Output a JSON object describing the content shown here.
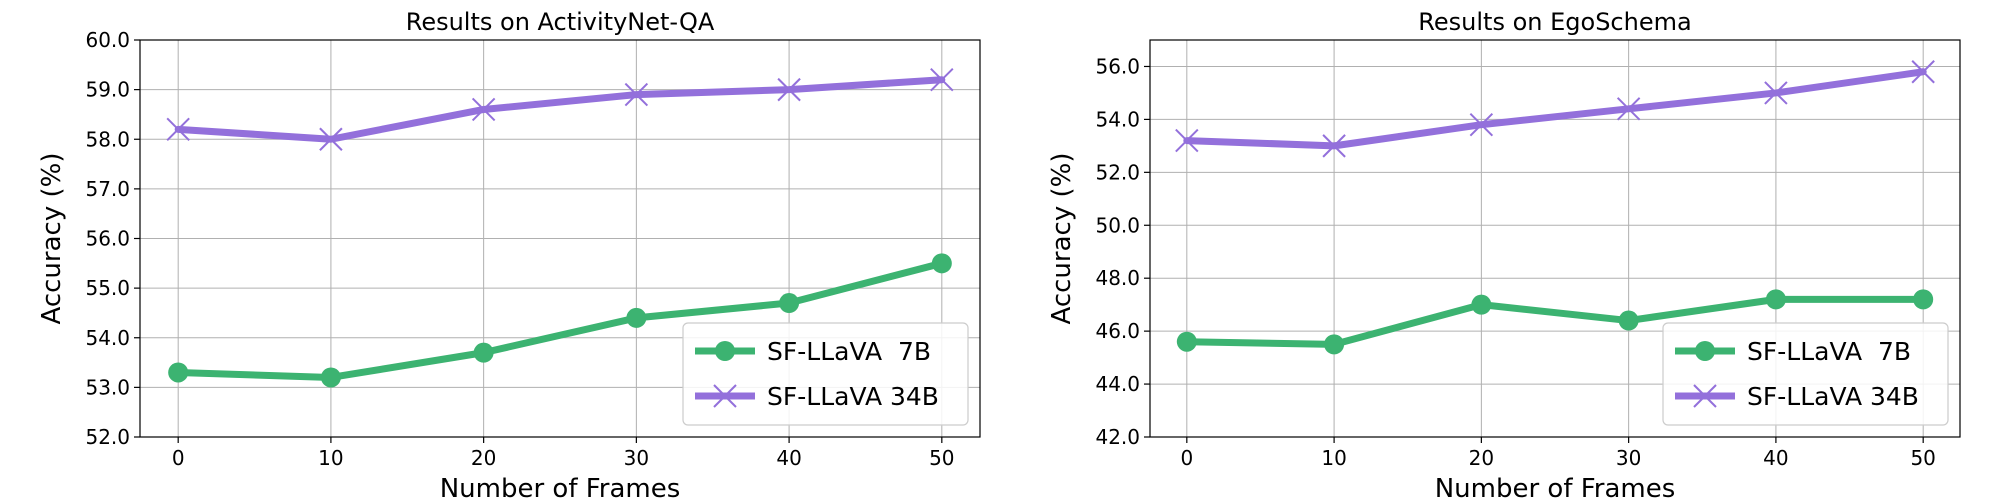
{
  "chart_data": [
    {
      "type": "line",
      "title": "Results on ActivityNet-QA",
      "xlabel": "Number of Frames",
      "ylabel": "Accuracy (%)",
      "x": [
        0,
        10,
        20,
        30,
        40,
        50
      ],
      "xlim": [
        -2.5,
        52.5
      ],
      "ylim": [
        52.0,
        60.0
      ],
      "xticks": [
        0,
        10,
        20,
        30,
        40,
        50
      ],
      "yticks": [
        52.0,
        53.0,
        54.0,
        55.0,
        56.0,
        57.0,
        58.0,
        59.0,
        60.0
      ],
      "grid": true,
      "legend_position": "lower-right",
      "series": [
        {
          "name": "SF-LLaVA  7B",
          "marker": "circle",
          "color": "#3cb371",
          "values": [
            53.3,
            53.2,
            53.7,
            54.4,
            54.7,
            55.5
          ]
        },
        {
          "name": "SF-LLaVA 34B",
          "marker": "x",
          "color": "#9370db",
          "values": [
            58.2,
            58.0,
            58.6,
            58.9,
            59.0,
            59.2
          ]
        }
      ]
    },
    {
      "type": "line",
      "title": "Results on EgoSchema",
      "xlabel": "Number of Frames",
      "ylabel": "Accuracy (%)",
      "x": [
        0,
        10,
        20,
        30,
        40,
        50
      ],
      "xlim": [
        -2.5,
        52.5
      ],
      "ylim": [
        42.0,
        57.0
      ],
      "xticks": [
        0,
        10,
        20,
        30,
        40,
        50
      ],
      "yticks": [
        42.0,
        44.0,
        46.0,
        48.0,
        50.0,
        52.0,
        54.0,
        56.0
      ],
      "grid": true,
      "legend_position": "lower-right",
      "series": [
        {
          "name": "SF-LLaVA  7B",
          "marker": "circle",
          "color": "#3cb371",
          "values": [
            45.6,
            45.5,
            47.0,
            46.4,
            47.2,
            47.2
          ]
        },
        {
          "name": "SF-LLaVA 34B",
          "marker": "x",
          "color": "#9370db",
          "values": [
            53.2,
            53.0,
            53.8,
            54.4,
            55.0,
            55.8
          ]
        }
      ]
    }
  ]
}
